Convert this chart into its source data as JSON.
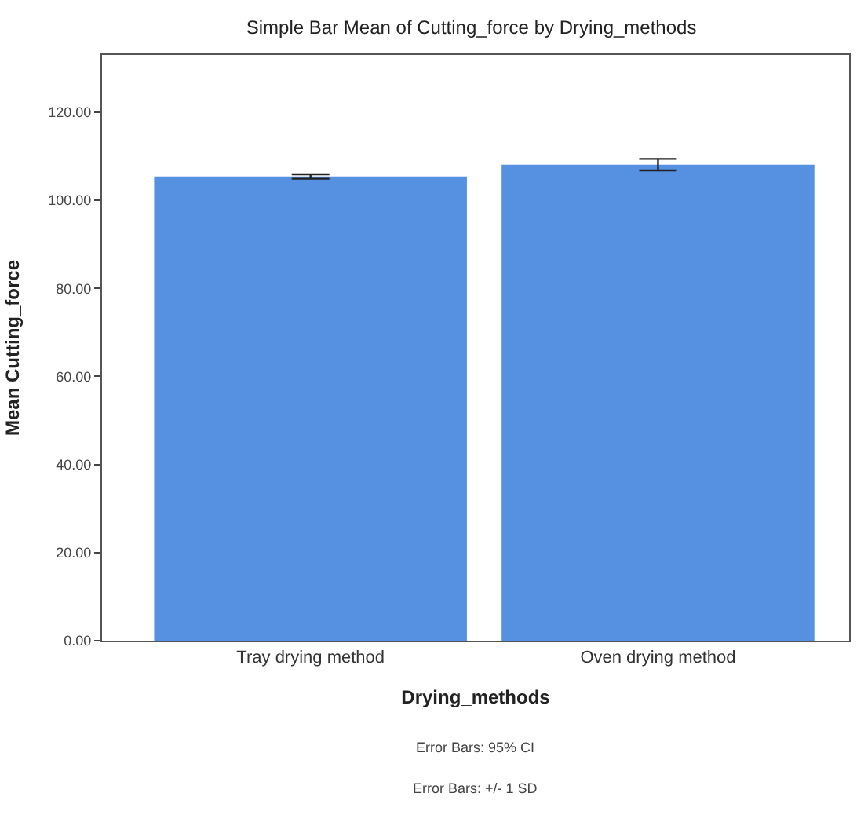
{
  "chart_data": {
    "type": "bar",
    "title": "Simple Bar Mean of Cutting_force by Drying_methods",
    "xlabel": "Drying_methods",
    "ylabel": "Mean Cutting_force",
    "categories": [
      "Tray drying method",
      "Oven drying method"
    ],
    "values": [
      105.4,
      108.1
    ],
    "errors": [
      0.5,
      1.3
    ],
    "color": "#5591e0",
    "ylim": [
      0,
      133
    ],
    "yticks": [
      {
        "value": 0,
        "label": "0.00"
      },
      {
        "value": 20,
        "label": "20.00"
      },
      {
        "value": 40,
        "label": "40.00"
      },
      {
        "value": 60,
        "label": "60.00"
      },
      {
        "value": 80,
        "label": "80.00"
      },
      {
        "value": 100,
        "label": "100.00"
      },
      {
        "value": 120,
        "label": "120.00"
      }
    ],
    "annotations": [
      "Error Bars: 95% CI",
      "Error Bars: +/- 1 SD"
    ]
  }
}
